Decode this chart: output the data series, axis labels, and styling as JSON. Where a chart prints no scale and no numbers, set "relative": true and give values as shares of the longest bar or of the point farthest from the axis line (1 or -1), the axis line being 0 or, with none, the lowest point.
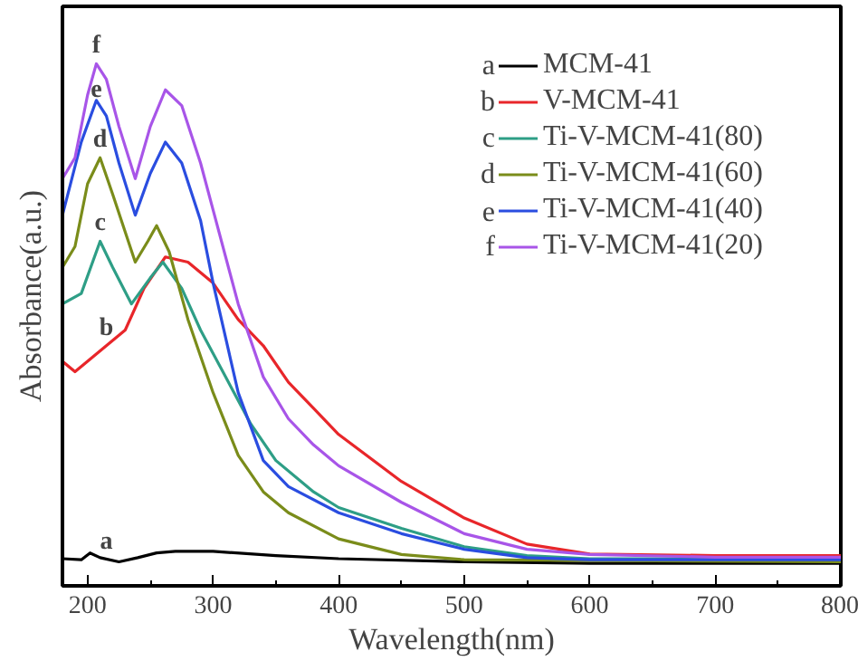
{
  "chart_data": {
    "type": "line",
    "xlabel": "Wavelength(nm)",
    "ylabel": "Absorbance(a.u.)",
    "relative": true,
    "xlim": [
      180,
      800
    ],
    "xticks": [
      200,
      300,
      400,
      500,
      600,
      700,
      800
    ],
    "grid": false,
    "legend": "top right",
    "marker": "none",
    "line_style": "solid",
    "series": [
      {
        "name": "MCM-41",
        "color": "#000000",
        "x": [
          180,
          195,
          202,
          210,
          225,
          240,
          255,
          270,
          300,
          350,
          400,
          500,
          600,
          800
        ],
        "values": [
          0.052,
          0.05,
          0.063,
          0.054,
          0.046,
          0.054,
          0.063,
          0.066,
          0.066,
          0.058,
          0.052,
          0.046,
          0.043,
          0.043
        ]
      },
      {
        "name": "V-MCM-41",
        "color": "#e8262a",
        "x": [
          180,
          190,
          200,
          215,
          230,
          245,
          262,
          280,
          300,
          320,
          340,
          360,
          380,
          400,
          450,
          500,
          550,
          600,
          700,
          800
        ],
        "values": [
          0.43,
          0.41,
          0.43,
          0.46,
          0.49,
          0.57,
          0.63,
          0.62,
          0.58,
          0.51,
          0.46,
          0.39,
          0.34,
          0.29,
          0.2,
          0.13,
          0.08,
          0.061,
          0.058,
          0.058
        ]
      },
      {
        "name": "Ti-V-MCM-41(80)",
        "color": "#2e9e86",
        "x": [
          180,
          195,
          210,
          220,
          235,
          250,
          260,
          275,
          290,
          310,
          330,
          350,
          380,
          400,
          450,
          500,
          550,
          600,
          800
        ],
        "values": [
          0.54,
          0.56,
          0.66,
          0.61,
          0.54,
          0.59,
          0.62,
          0.57,
          0.49,
          0.4,
          0.31,
          0.24,
          0.18,
          0.15,
          0.11,
          0.075,
          0.058,
          0.052,
          0.052
        ]
      },
      {
        "name": "Ti-V-MCM-41(60)",
        "color": "#7a8c1a",
        "x": [
          180,
          190,
          200,
          210,
          220,
          238,
          248,
          255,
          265,
          280,
          300,
          320,
          340,
          360,
          400,
          450,
          500,
          800
        ],
        "values": [
          0.61,
          0.65,
          0.77,
          0.82,
          0.75,
          0.62,
          0.66,
          0.69,
          0.64,
          0.51,
          0.37,
          0.25,
          0.18,
          0.14,
          0.09,
          0.06,
          0.05,
          0.046
        ]
      },
      {
        "name": "Ti-V-MCM-41(40)",
        "color": "#2a4de0",
        "x": [
          180,
          195,
          207,
          215,
          225,
          238,
          250,
          262,
          275,
          290,
          300,
          320,
          340,
          360,
          400,
          450,
          500,
          550,
          600,
          800
        ],
        "values": [
          0.71,
          0.85,
          0.93,
          0.9,
          0.81,
          0.71,
          0.79,
          0.85,
          0.81,
          0.7,
          0.58,
          0.37,
          0.24,
          0.19,
          0.14,
          0.1,
          0.07,
          0.054,
          0.05,
          0.05
        ]
      },
      {
        "name": "Ti-V-MCM-41(20)",
        "color": "#a855e8",
        "x": [
          180,
          190,
          200,
          207,
          215,
          225,
          238,
          250,
          262,
          275,
          290,
          300,
          320,
          340,
          360,
          380,
          400,
          450,
          500,
          550,
          600,
          700,
          800
        ],
        "values": [
          0.78,
          0.82,
          0.94,
          1.0,
          0.97,
          0.88,
          0.78,
          0.88,
          0.95,
          0.92,
          0.81,
          0.72,
          0.54,
          0.4,
          0.32,
          0.27,
          0.23,
          0.16,
          0.1,
          0.07,
          0.06,
          0.055,
          0.055
        ]
      }
    ],
    "annotations": [
      {
        "text": "a",
        "x": 215,
        "y": 0.05
      },
      {
        "text": "b",
        "x": 215,
        "y": 0.46
      },
      {
        "text": "c",
        "x": 210,
        "y": 0.66
      },
      {
        "text": "d",
        "x": 210,
        "y": 0.82
      },
      {
        "text": "e",
        "x": 207,
        "y": 0.93
      },
      {
        "text": "f",
        "x": 207,
        "y": 1.0
      }
    ]
  }
}
